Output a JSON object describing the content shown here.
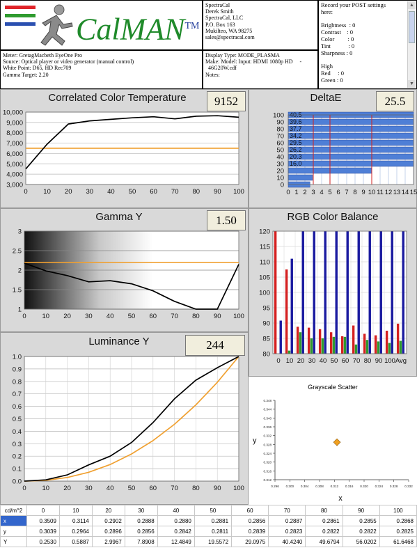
{
  "logo": {
    "brand": "CalMAN",
    "trademark": "TM",
    "stripe_colors": [
      "#e0242a",
      "#2f9b2f",
      "#2a4fb0"
    ]
  },
  "company": {
    "lines": [
      "SpectraCal",
      "Derek Smith",
      "SpectraCal, LLC",
      "P.O. Box 163",
      "Mukilteo, WA 98275",
      "sales@spectracal.com"
    ]
  },
  "post_settings": {
    "lines": [
      "Record your POST settings",
      "here:",
      "",
      "Brightness  : 0",
      "Contrast    : 0",
      "Color         : 0",
      "Tint            : 0",
      "Sharpness : 0",
      "",
      "High",
      "Red     : 0",
      "Green : 0"
    ]
  },
  "meter_info": {
    "lines": [
      "Meter: GretagMacbeth EyeOne Pro",
      "Source: Optical player or video generator (manual control)",
      "White Point: D65, HD Rec709",
      "Gamma Target: 2.20"
    ]
  },
  "display_info": {
    "lines": [
      "Display Type: MODE_PLASMA",
      "Make: Model: Input: HDMI 1080p HD     -",
      "  46G20W.cdf",
      "Notes:"
    ]
  },
  "chart_data": [
    {
      "id": "cct",
      "type": "line",
      "title": "Correlated Color Temperature",
      "value_label": "9152",
      "x": [
        0,
        10,
        20,
        30,
        40,
        50,
        60,
        70,
        80,
        90,
        100
      ],
      "xlim": [
        0,
        100
      ],
      "ylim": [
        3000,
        10000
      ],
      "yticks": [
        "3,000",
        "4,000",
        "5,000",
        "6,000",
        "7,000",
        "8,000",
        "9,000",
        "10,000"
      ],
      "grid": true,
      "series": [
        {
          "values": [
            4500,
            6900,
            8850,
            9150,
            9300,
            9450,
            9550,
            9350,
            9600,
            9650,
            9500
          ],
          "color": "#000000"
        },
        {
          "values": [
            6504,
            6504,
            6504,
            6504,
            6504,
            6504,
            6504,
            6504,
            6504,
            6504,
            6504
          ],
          "color": "#f0a030"
        }
      ]
    },
    {
      "id": "deltae",
      "type": "bar",
      "title": "DeltaE",
      "value_label": "25.5",
      "orientation": "horizontal",
      "xticks": [
        "0",
        "1",
        "2",
        "3",
        "4",
        "5",
        "6",
        "7",
        "8",
        "9",
        "10",
        "11",
        "12",
        "13",
        "14",
        "15"
      ],
      "yticks": [
        "0",
        "10",
        "20",
        "30",
        "40",
        "50",
        "60",
        "70",
        "80",
        "90",
        "100"
      ],
      "categories": [
        "0",
        "10",
        "20",
        "30",
        "40",
        "50",
        "60",
        "70",
        "80",
        "90",
        "100"
      ],
      "values": [
        2.6,
        2.9,
        10.0,
        16.0,
        20.3,
        26.2,
        29.5,
        34.2,
        37.7,
        39.6,
        40.5
      ],
      "bar_labels": [
        "",
        "",
        "",
        "16.0",
        "20.3",
        "26.2",
        "29.5",
        "34.2",
        "37.7",
        "39.6",
        "40.5"
      ],
      "thresholds": [
        3,
        5,
        10
      ],
      "xlim": [
        0,
        15
      ],
      "bar_color": "#4f7fd6"
    },
    {
      "id": "gamma",
      "type": "line",
      "title": "Gamma Y",
      "value_label": "1.50",
      "x": [
        0,
        10,
        20,
        30,
        40,
        50,
        60,
        70,
        80,
        90,
        100
      ],
      "xlim": [
        0,
        100
      ],
      "ylim": [
        1,
        3
      ],
      "yticks": [
        "1",
        "1.5",
        "2",
        "2.5",
        "3"
      ],
      "series": [
        {
          "values": [
            2.18,
            1.98,
            1.86,
            1.7,
            1.73,
            1.65,
            1.47,
            1.2,
            0.95,
            0.9,
            2.15
          ],
          "color": "#000000"
        },
        {
          "values": [
            2.2,
            2.2,
            2.2,
            2.2,
            2.2,
            2.2,
            2.2,
            2.2,
            2.2,
            2.2,
            2.2
          ],
          "color": "#f0a030"
        }
      ]
    },
    {
      "id": "rgb",
      "type": "bar",
      "title": "RGB Color Balance",
      "categories": [
        "0",
        "10",
        "20",
        "30",
        "40",
        "50",
        "60",
        "70",
        "80",
        "90",
        "100",
        "Avg"
      ],
      "ylim": [
        80,
        120
      ],
      "yticks": [
        "80",
        "85",
        "90",
        "95",
        "100",
        "105",
        "110",
        "115",
        "120"
      ],
      "series": [
        {
          "name": "Red",
          "color": "#d42020",
          "values": [
            120,
            107.5,
            88.8,
            88.5,
            88.0,
            87.0,
            85.7,
            89.2,
            86.5,
            86.0,
            87.5,
            89.8
          ]
        },
        {
          "name": "Green",
          "color": "#2e9a2e",
          "values": [
            80,
            81.0,
            87.0,
            85.0,
            85.0,
            85.5,
            85.5,
            83.0,
            84.5,
            84.0,
            83.5,
            84.2
          ]
        },
        {
          "name": "Blue",
          "color": "#1a1aa0",
          "values": [
            90.8,
            111.0,
            120,
            120,
            120,
            120,
            120,
            120,
            120,
            120,
            120,
            120
          ]
        }
      ]
    },
    {
      "id": "luminance",
      "type": "line",
      "title": "Luminance Y",
      "value_label": "244",
      "x": [
        0,
        10,
        20,
        30,
        40,
        50,
        60,
        70,
        80,
        90,
        100
      ],
      "xlim": [
        0,
        100
      ],
      "ylim": [
        0,
        1
      ],
      "yticks": [
        "0.0",
        "0.1",
        "0.2",
        "0.3",
        "0.4",
        "0.5",
        "0.6",
        "0.7",
        "0.8",
        "0.9",
        "1.0"
      ],
      "series": [
        {
          "values": [
            0.0,
            0.01,
            0.05,
            0.13,
            0.2,
            0.31,
            0.47,
            0.66,
            0.81,
            0.91,
            1.0
          ],
          "color": "#000000"
        },
        {
          "values": [
            0.0,
            0.006,
            0.029,
            0.071,
            0.133,
            0.218,
            0.325,
            0.456,
            0.612,
            0.793,
            1.0
          ],
          "color": "#f0a030"
        }
      ]
    },
    {
      "id": "scatter",
      "type": "scatter",
      "title": "Grayscale Scatter",
      "xlabel": "x",
      "ylabel": "y",
      "xticks": [
        "0.296",
        "0.300",
        "0.304",
        "0.308",
        "0.312",
        "0.316",
        "0.320",
        "0.324",
        "0.328",
        "0.332"
      ],
      "yticks": [
        "0.312",
        "0.316",
        "0.320",
        "0.324",
        "0.328",
        "0.332",
        "0.336",
        "0.340",
        "0.344",
        "0.348"
      ],
      "xlim": [
        0.296,
        0.332
      ],
      "ylim": [
        0.312,
        0.348
      ],
      "points": [
        {
          "x": 0.3127,
          "y": 0.329,
          "color": "#f0a020"
        }
      ]
    }
  ],
  "data_table": {
    "header": [
      "cd/m^2",
      "0",
      "10",
      "20",
      "30",
      "40",
      "50",
      "60",
      "70",
      "80",
      "90",
      "100"
    ],
    "rows": [
      [
        "x",
        "0.3509",
        "0.3114",
        "0.2902",
        "0.2888",
        "0.2880",
        "0.2881",
        "0.2856",
        "0.2887",
        "0.2861",
        "0.2855",
        "0.2868"
      ],
      [
        "y",
        "0.3039",
        "0.2964",
        "0.2896",
        "0.2856",
        "0.2842",
        "0.2811",
        "0.2839",
        "0.2823",
        "0.2822",
        "0.2822",
        "0.2825"
      ],
      [
        "Y",
        "0.2530",
        "0.5887",
        "2.9967",
        "7.8908",
        "12.4849",
        "19.5572",
        "29.0975",
        "40.4240",
        "49.6794",
        "56.0202",
        "61.6468"
      ]
    ]
  }
}
